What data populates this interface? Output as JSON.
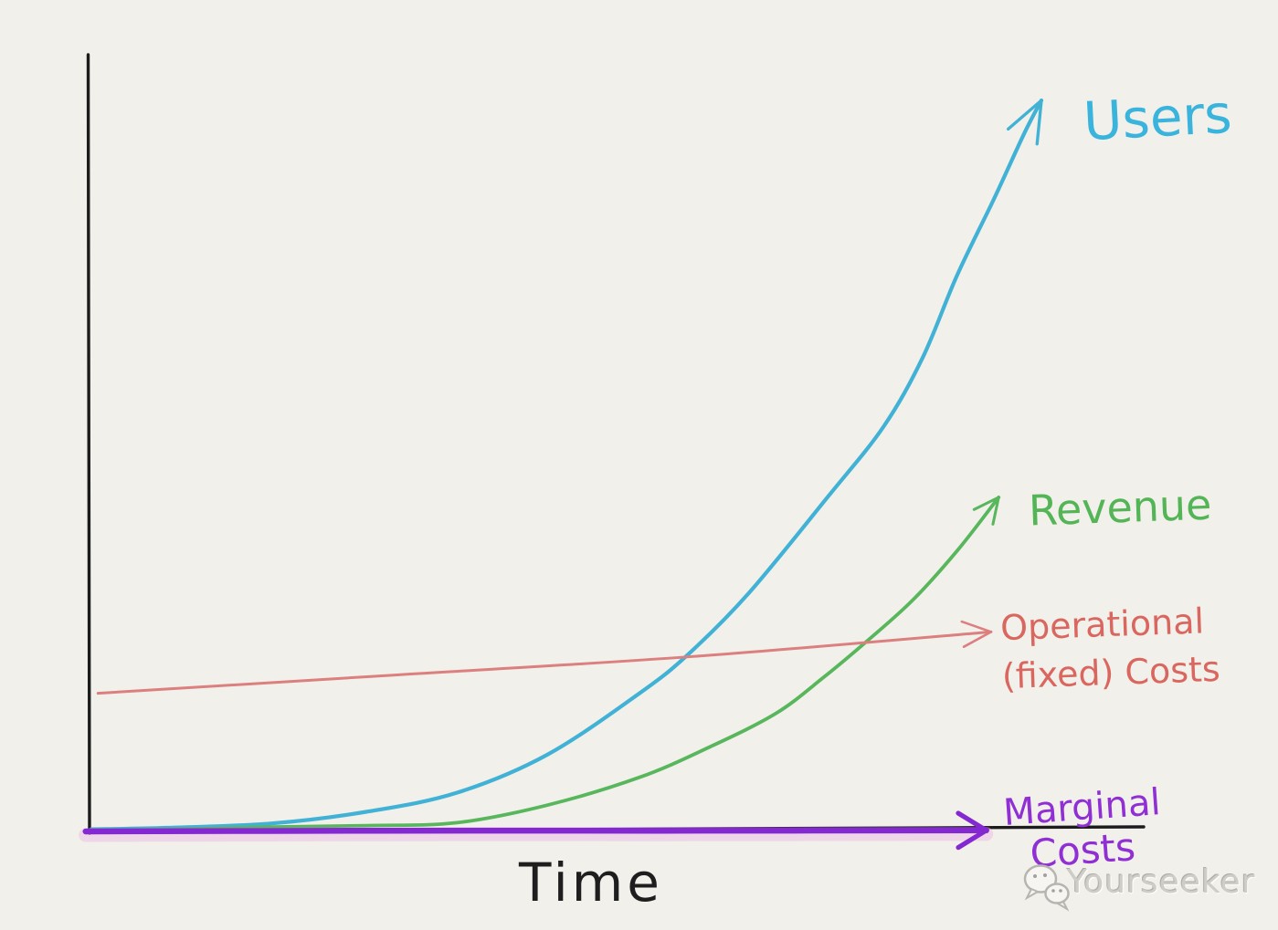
{
  "page": {
    "background_color": "#f1f0ea",
    "style": "hand-drawn whiteboard sketch"
  },
  "watermark": {
    "brand": "Yourseeker",
    "icon": "wechat-speech-bubbles-icon",
    "color": "#cfcdc8"
  },
  "chart_data": {
    "type": "line",
    "title": "",
    "xlabel": "Time",
    "ylabel": "",
    "x_range": [
      0,
      10
    ],
    "y_range": [
      0,
      100
    ],
    "grid": false,
    "axis_color": "#1c1c1c",
    "tick_labels": [],
    "legend_position": "labels at line ends with hand-drawn arrows",
    "series": [
      {
        "name": "Users",
        "color": "#41b2d6",
        "label_lines": [
          "Users"
        ],
        "arrow": true,
        "shape": "exponential growth",
        "points": [
          [
            0,
            0.3
          ],
          [
            0.8,
            0.5
          ],
          [
            1.9,
            1.1
          ],
          [
            2.9,
            2.7
          ],
          [
            3.85,
            5.3
          ],
          [
            4.8,
            10.5
          ],
          [
            5.77,
            18.9
          ],
          [
            6.28,
            24.2
          ],
          [
            6.92,
            32.6
          ],
          [
            7.76,
            45.9
          ],
          [
            8.34,
            55.4
          ],
          [
            8.75,
            64.8
          ],
          [
            9.11,
            76.0
          ],
          [
            9.5,
            86.5
          ],
          [
            9.82,
            95.5
          ],
          [
            10.0,
            100
          ]
        ]
      },
      {
        "name": "Revenue",
        "color": "#58b65c",
        "label_lines": [
          "Revenue"
        ],
        "arrow": true,
        "shape": "exponential growth, lagging Users",
        "points": [
          [
            0,
            0.2
          ],
          [
            0.9,
            0.3
          ],
          [
            1.9,
            0.6
          ],
          [
            2.9,
            0.8
          ],
          [
            3.85,
            1.2
          ],
          [
            4.8,
            3.6
          ],
          [
            5.77,
            7.4
          ],
          [
            6.5,
            11.5
          ],
          [
            7.2,
            16.1
          ],
          [
            7.7,
            21.0
          ],
          [
            8.17,
            26.1
          ],
          [
            8.65,
            31.7
          ],
          [
            9.12,
            38.5
          ],
          [
            9.55,
            45.7
          ]
        ]
      },
      {
        "name": "Operational (fixed) Costs",
        "color": "#dc7f7f",
        "label_lines": [
          "Operational",
          "(fixed) Costs"
        ],
        "arrow": true,
        "shape": "nearly flat, slowly rising straight line",
        "points": [
          [
            0.07,
            18.9
          ],
          [
            3.2,
            21.4
          ],
          [
            6.3,
            23.9
          ],
          [
            9.47,
            27.3
          ]
        ]
      },
      {
        "name": "Marginal Costs",
        "color": "#8428d2",
        "label_lines": [
          "Marginal",
          "Costs"
        ],
        "arrow": true,
        "shape": "flat at zero along x-axis",
        "points": [
          [
            -0.06,
            0.0
          ],
          [
            3,
            0.1
          ],
          [
            6,
            0.1
          ],
          [
            9.42,
            0.15
          ]
        ]
      }
    ]
  }
}
